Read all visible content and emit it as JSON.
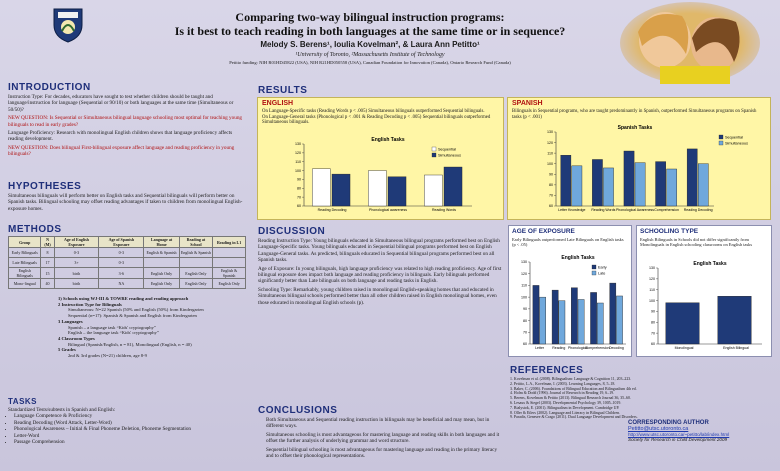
{
  "header": {
    "title_line1": "Comparing two-way bilingual instruction programs:",
    "title_line2": "Is it best to teach reading in both languages at the same time or in sequence?",
    "authors": "Melody S. Berens¹, Ioulia Kovelman², & Laura Ann Petitto¹",
    "affiliations": "¹University of Toronto, ²Massachusetts Institute of Technology",
    "funding": "Petitto funding: NIH R01HD45822 (USA), NIH R21HD050558 (USA), Canadian Foundation for Innovation (Canada), Ontario Research Fund (Canada)"
  },
  "intro": {
    "heading": "INTRODUCTION",
    "p1": "Instruction Type: For decades, educators have sought to test whether children should be taught and language/instruction for language (Sequential or 90/10) or both languages at the same time (Simultaneous or 50/50)?",
    "q1": "NEW QUESTION: Is Sequential or Simultaneous bilingual language schooling most optimal for teaching young bilinguals to read in early grades?",
    "p2": "Language Proficiency: Research with monolingual English children shows that language proficiency affects reading development.",
    "q2": "NEW QUESTION: Does bilingual First-bilingual exposure affect language and reading proficiency in young bilinguals?"
  },
  "hypotheses": {
    "heading": "HYPOTHESES",
    "text": "Simultaneous bilinguals will perform better on English tasks and Sequential bilinguals will perform better on Spanish tasks. Bilingual schooling may offset reading advantages if taken to children from monolingual English-exposure homes."
  },
  "methods": {
    "heading": "METHODS",
    "columns": [
      "Group",
      "N (M)",
      "Age of English Exposure",
      "Age of Spanish Exposure",
      "Language at Home",
      "Reading at School",
      "Reading in L1"
    ],
    "rows": [
      [
        "Early Bilinguals",
        "8",
        "0-3",
        "0-3",
        "English & Spanish",
        "English & Spanish",
        ""
      ],
      [
        "Late Bilinguals",
        "17",
        "3+",
        "0-3",
        "",
        "",
        ""
      ],
      [
        "English Bilinguals",
        "15",
        "birth",
        "3-6",
        "English Only",
        "English Only",
        "English & Spanish"
      ],
      [
        "Mono-lingual",
        "40",
        "birth",
        "NA",
        "English Only",
        "English Only",
        "English Only"
      ]
    ],
    "notes": [
      "1) Schools using WJ-III & TOWRE reading and reading approach",
      "2 Instruction Type for Bilinguals",
      "Simultaneous: N=22 Spanish (50% and English (50%) from Kindergarten",
      "Sequential (n=17): Spanish & Spanish and English from Kindergarten",
      "3 Languages",
      "Spanish – a language task “Kids' cryptography”",
      "English – the language task “Kids' cryptography”",
      "4 Classroom Types",
      "Bilingual (Spanish/English, n = 81), Monolingual (English, n = 40)",
      "5 Grades",
      "2nd & 3rd grades (N=21) children, age 8-9"
    ]
  },
  "tasks": {
    "heading": "TASKS",
    "intro": "Standardized Tests/subtests in Spanish and English:",
    "items": [
      "Language Competence & Proficiency",
      "Reading Decoding (Word Attack, Letter-Word)",
      "Phonological Awareness – Initial & Final Phoneme Deletion, Phoneme Segmentation",
      "Letter-Word",
      "Passage Comprehension"
    ]
  },
  "results": {
    "heading": "RESULTS",
    "english": {
      "title": "ENGLISH",
      "line1": "On Language-Specific tasks (Reading Words p < .005) Simultaneous bilinguals outperformed Sequential bilinguals.",
      "line2": "On Language-General tasks (Phonological p < .001 & Reading Decoding p < .005) Sequential bilinguals outperformed Simultaneous bilinguals.",
      "chart_title": "English Tasks"
    },
    "spanish": {
      "title": "SPANISH",
      "line1": "Bilinguals in Sequential programs, who are taught predominantly in Spanish, outperformed Simultaneous programs on Spanish tasks (p < .001)",
      "chart_title": "Spanish Tasks"
    },
    "age": {
      "title": "AGE OF EXPOSURE",
      "line1": "Early Bilinguals outperformed Late Bilinguals on English tasks (p < .05)",
      "chart_title": "English Tasks"
    },
    "schooling": {
      "title": "SCHOOLING TYPE",
      "line1": "English Bilinguals in Schools did not differ significantly from Monolinguals in English schooling classrooms on English tasks",
      "chart_title": "English Tasks"
    }
  },
  "discussion": {
    "heading": "DISCUSSION",
    "p1": "Reading Instruction Type: Young bilinguals educated in Simultaneous bilingual programs performed best on English Language-Specific tasks. Young bilinguals educated in Sequential bilingual programs performed best on English Language-General tasks. As predicted, bilinguals educated in Sequential bilingual programs performed best on all Spanish tasks.",
    "p2": "Age of Exposure: In young bilinguals, high language proficiency was related to high reading proficiency. Age of first bilingual exposure does impact both language and reading proficiency in bilinguals. Early bilinguals performed significantly better than Late bilinguals on both language and reading tasks in English.",
    "p3": "Schooling Type: Remarkably, young children raised in monolingual English-speaking homes that and educated in Simultaneous bilingual schools performed better than all other children raised in English monolingual homes, even those educated in monolingual English schools (p)."
  },
  "conclusions": {
    "heading": "CONCLUSIONS",
    "p1": "Both Simultaneous and Sequential reading instruction in bilinguals may be beneficial and may mean, but in different ways.",
    "p2": "Simultaneous schooling is most advantageous for mastering language and reading skills in both languages and it offset the further analysis of underlying grammar and word structure.",
    "p3": "Sequential bilingual schooling is most advantageous for mastering language and reading in the primary literacy and to offset their phonological representations."
  },
  "references": {
    "heading": "REFERENCES",
    "items": [
      "1. Kovelman et al. (2008). Bilingualism: Language & Cognition 11, 203–223.",
      "2. Petitto, L.A., Kovelman, I. (2003). Learning Languages, 8, 5–18.",
      "3. Baker, C. (2006). Foundations of Bilingual Education and Bilingualism 4th ed.",
      "4. Holm & Dodd (1996). Journal of Research in Reading 19, 6–19.",
      "5. Berens, Kovelman & Petitto (2013). Bilingual Research Journal 36, 35–60.",
      "6. Lesaux & Siegel (2003). Developmental Psychology 39, 1005–1019.",
      "7. Bialystok, E. (2001). Bilingualism in Development. Cambridge UP.",
      "8. Oller & Eilers (2002). Language and Literacy in Bilingual Children.",
      "9. Paradis, Genesee & Crago (2011). Dual Language Development and Disorders."
    ]
  },
  "correspondence": {
    "heading": "CORRESPONDING AUTHOR",
    "email": "Petitto@utsc.utoronto.ca",
    "url": "http://www.utsc.utoronto.ca/~petitto/lab/index.html",
    "society": "Society for Research in Child Development 2009"
  },
  "chart_data": [
    {
      "type": "bar",
      "title": "English Tasks",
      "categories": [
        "Reading Decoding",
        "Phonological awareness",
        "Reading Words"
      ],
      "series": [
        {
          "name": "Sequential",
          "values": [
            102,
            100,
            95
          ]
        },
        {
          "name": "Simultaneous",
          "values": [
            96,
            93,
            104
          ]
        }
      ],
      "ylim": [
        60,
        130
      ],
      "colors": [
        "#ffffff",
        "#1f3a78"
      ]
    },
    {
      "type": "bar",
      "title": "Spanish Tasks",
      "categories": [
        "Letter Knowledge",
        "Reading Words",
        "Phonological Awareness",
        "Comprehension",
        "Reading Decoding"
      ],
      "series": [
        {
          "name": "Sequential",
          "values": [
            108,
            104,
            112,
            102,
            114
          ]
        },
        {
          "name": "Simultaneous",
          "values": [
            98,
            96,
            101,
            95,
            100
          ]
        }
      ],
      "ylim": [
        60,
        130
      ],
      "colors": [
        "#1f3a78",
        "#6fa8dc"
      ]
    },
    {
      "type": "bar",
      "title": "English Tasks",
      "categories": [
        "Letter",
        "Reading",
        "Phonological",
        "Comprehension",
        "Decoding"
      ],
      "series": [
        {
          "name": "Early",
          "values": [
            110,
            106,
            108,
            104,
            112
          ]
        },
        {
          "name": "Late",
          "values": [
            100,
            97,
            98,
            95,
            101
          ]
        }
      ],
      "ylim": [
        60,
        130
      ],
      "colors": [
        "#1f3a78",
        "#6fa8dc"
      ]
    },
    {
      "type": "bar",
      "title": "English Tasks",
      "categories": [
        "Monolingual",
        "English Bilingual"
      ],
      "series": [
        {
          "name": "Score",
          "values": [
            98,
            104
          ]
        }
      ],
      "ylim": [
        60,
        130
      ],
      "colors": [
        "#1f3a78",
        "#6fa8dc"
      ]
    }
  ]
}
